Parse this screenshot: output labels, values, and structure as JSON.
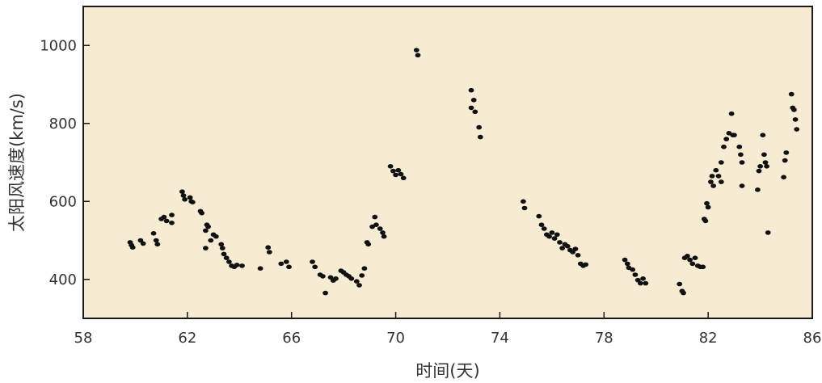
{
  "chart_data": {
    "type": "scatter",
    "title": "",
    "xlabel": "时间(天)",
    "ylabel": "太阳风速度(km/s)",
    "xlim": [
      58,
      86
    ],
    "ylim": [
      300,
      1100
    ],
    "xticks": [
      58,
      62,
      66,
      70,
      74,
      78,
      82,
      86
    ],
    "yticks": [
      400,
      600,
      800,
      1000
    ],
    "grid": false,
    "legend": "none",
    "colors": {
      "background": "#f7ebd3",
      "frame": "#1a1a1a",
      "points": "#111111"
    },
    "points": [
      [
        59.8,
        495
      ],
      [
        59.85,
        488
      ],
      [
        59.9,
        482
      ],
      [
        60.2,
        500
      ],
      [
        60.3,
        492
      ],
      [
        60.7,
        518
      ],
      [
        60.8,
        500
      ],
      [
        60.85,
        490
      ],
      [
        61.0,
        555
      ],
      [
        61.1,
        560
      ],
      [
        61.2,
        550
      ],
      [
        61.4,
        565
      ],
      [
        61.4,
        545
      ],
      [
        61.8,
        625
      ],
      [
        61.85,
        615
      ],
      [
        61.9,
        605
      ],
      [
        62.1,
        610
      ],
      [
        62.15,
        600
      ],
      [
        62.2,
        598
      ],
      [
        62.5,
        575
      ],
      [
        62.55,
        570
      ],
      [
        62.7,
        525
      ],
      [
        62.75,
        540
      ],
      [
        62.8,
        535
      ],
      [
        62.7,
        480
      ],
      [
        62.9,
        500
      ],
      [
        63.0,
        515
      ],
      [
        63.1,
        510
      ],
      [
        63.3,
        490
      ],
      [
        63.35,
        480
      ],
      [
        63.4,
        465
      ],
      [
        63.5,
        455
      ],
      [
        63.6,
        445
      ],
      [
        63.7,
        435
      ],
      [
        63.8,
        432
      ],
      [
        63.9,
        437
      ],
      [
        64.1,
        435
      ],
      [
        64.8,
        428
      ],
      [
        65.1,
        482
      ],
      [
        65.15,
        470
      ],
      [
        65.6,
        440
      ],
      [
        65.8,
        445
      ],
      [
        65.9,
        432
      ],
      [
        66.8,
        445
      ],
      [
        66.9,
        432
      ],
      [
        67.1,
        412
      ],
      [
        67.2,
        408
      ],
      [
        67.3,
        365
      ],
      [
        67.5,
        405
      ],
      [
        67.6,
        397
      ],
      [
        67.7,
        402
      ],
      [
        67.9,
        422
      ],
      [
        68.0,
        418
      ],
      [
        68.1,
        412
      ],
      [
        68.2,
        408
      ],
      [
        68.3,
        402
      ],
      [
        68.5,
        395
      ],
      [
        68.6,
        385
      ],
      [
        68.7,
        410
      ],
      [
        68.8,
        428
      ],
      [
        68.9,
        495
      ],
      [
        68.95,
        490
      ],
      [
        69.1,
        535
      ],
      [
        69.2,
        560
      ],
      [
        69.25,
        540
      ],
      [
        69.4,
        530
      ],
      [
        69.5,
        520
      ],
      [
        69.55,
        510
      ],
      [
        69.8,
        690
      ],
      [
        69.9,
        678
      ],
      [
        70.0,
        668
      ],
      [
        70.1,
        680
      ],
      [
        70.2,
        670
      ],
      [
        70.3,
        660
      ],
      [
        70.8,
        988
      ],
      [
        70.85,
        975
      ],
      [
        72.9,
        885
      ],
      [
        72.9,
        840
      ],
      [
        73.0,
        860
      ],
      [
        73.05,
        830
      ],
      [
        73.2,
        790
      ],
      [
        73.25,
        765
      ],
      [
        74.9,
        600
      ],
      [
        74.95,
        583
      ],
      [
        75.5,
        562
      ],
      [
        75.6,
        540
      ],
      [
        75.7,
        530
      ],
      [
        75.8,
        515
      ],
      [
        75.9,
        510
      ],
      [
        76.0,
        520
      ],
      [
        76.1,
        505
      ],
      [
        76.2,
        515
      ],
      [
        76.3,
        495
      ],
      [
        76.4,
        480
      ],
      [
        76.5,
        490
      ],
      [
        76.6,
        485
      ],
      [
        76.7,
        475
      ],
      [
        76.8,
        470
      ],
      [
        76.9,
        478
      ],
      [
        77.0,
        462
      ],
      [
        77.1,
        440
      ],
      [
        77.2,
        435
      ],
      [
        77.3,
        438
      ],
      [
        78.8,
        450
      ],
      [
        78.9,
        440
      ],
      [
        78.95,
        430
      ],
      [
        79.1,
        425
      ],
      [
        79.2,
        412
      ],
      [
        79.3,
        398
      ],
      [
        79.4,
        390
      ],
      [
        79.5,
        402
      ],
      [
        79.6,
        390
      ],
      [
        80.9,
        388
      ],
      [
        81.0,
        370
      ],
      [
        81.05,
        365
      ],
      [
        81.1,
        455
      ],
      [
        81.2,
        460
      ],
      [
        81.3,
        450
      ],
      [
        81.4,
        440
      ],
      [
        81.5,
        455
      ],
      [
        81.6,
        435
      ],
      [
        81.7,
        432
      ],
      [
        81.8,
        432
      ],
      [
        81.85,
        555
      ],
      [
        81.9,
        550
      ],
      [
        81.95,
        595
      ],
      [
        82.0,
        585
      ],
      [
        82.1,
        650
      ],
      [
        82.15,
        665
      ],
      [
        82.2,
        640
      ],
      [
        82.3,
        680
      ],
      [
        82.4,
        665
      ],
      [
        82.5,
        650
      ],
      [
        82.5,
        700
      ],
      [
        82.6,
        740
      ],
      [
        82.7,
        760
      ],
      [
        82.8,
        775
      ],
      [
        82.9,
        825
      ],
      [
        82.95,
        770
      ],
      [
        83.0,
        770
      ],
      [
        83.2,
        740
      ],
      [
        83.25,
        720
      ],
      [
        83.3,
        700
      ],
      [
        83.3,
        640
      ],
      [
        83.9,
        630
      ],
      [
        83.95,
        678
      ],
      [
        84.0,
        690
      ],
      [
        84.1,
        770
      ],
      [
        84.15,
        720
      ],
      [
        84.2,
        700
      ],
      [
        84.25,
        690
      ],
      [
        84.3,
        520
      ],
      [
        84.9,
        662
      ],
      [
        84.95,
        705
      ],
      [
        85.0,
        725
      ],
      [
        85.2,
        875
      ],
      [
        85.25,
        840
      ],
      [
        85.3,
        835
      ],
      [
        85.35,
        810
      ],
      [
        85.4,
        785
      ]
    ]
  }
}
